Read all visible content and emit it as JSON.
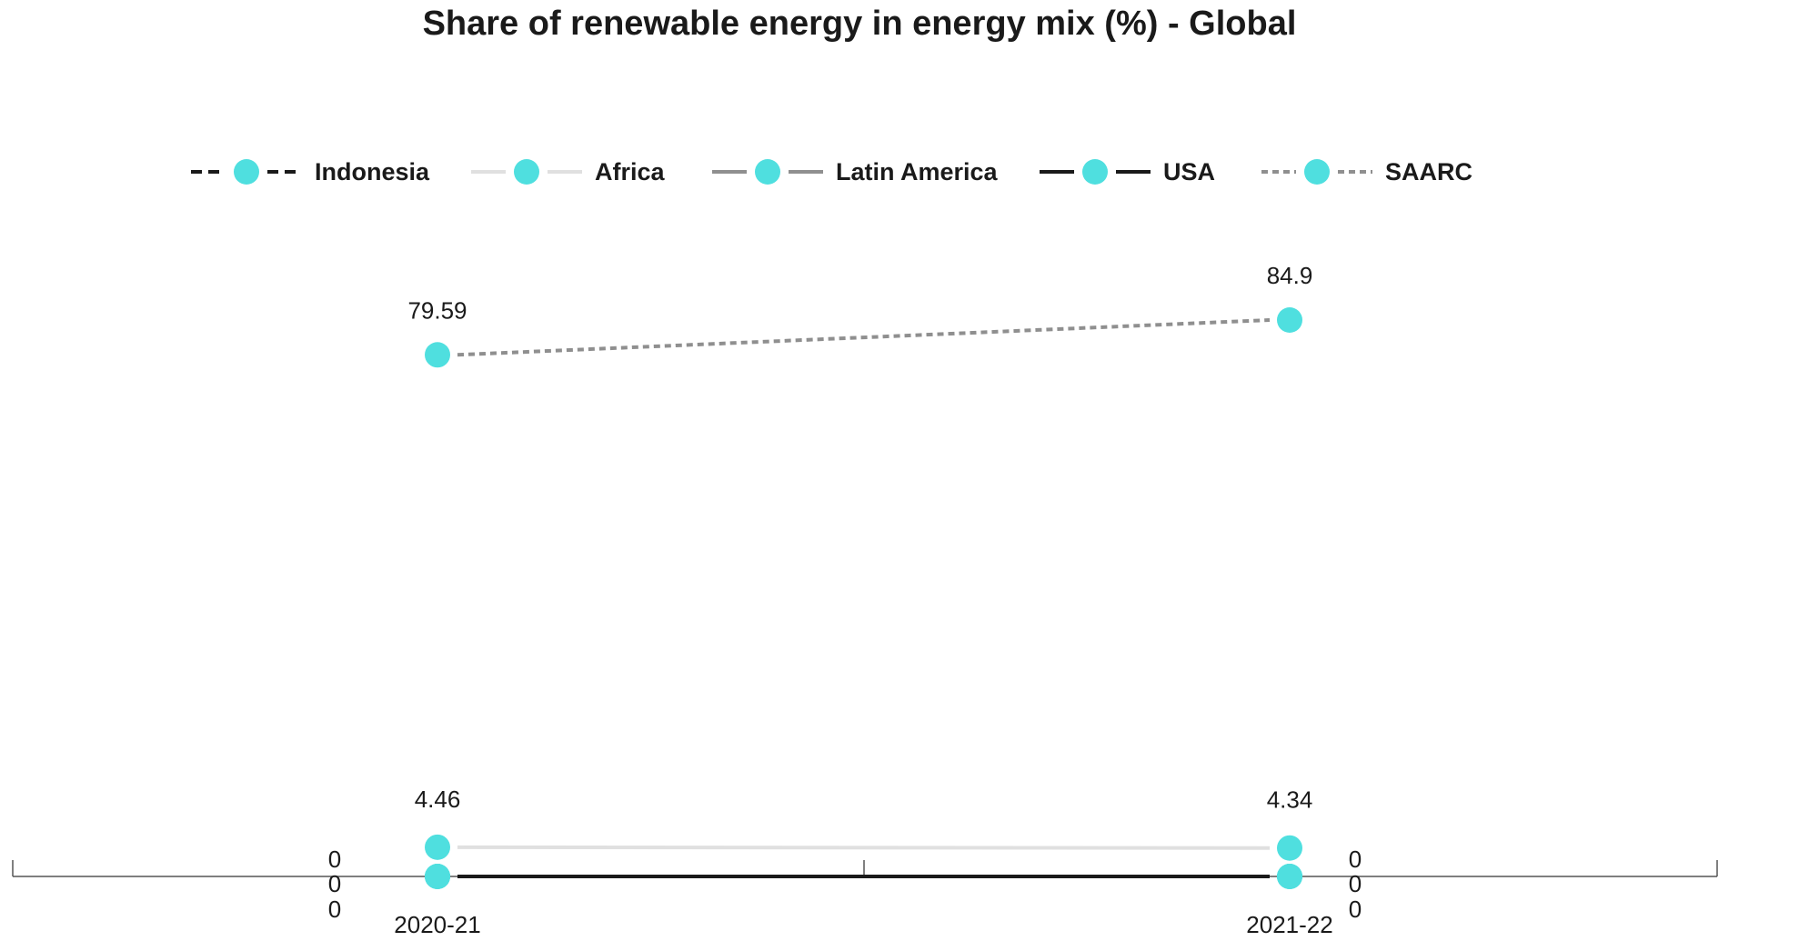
{
  "chart_data": {
    "type": "line",
    "title": "Share of renewable energy in energy mix (%) - Global",
    "xlabel": "",
    "ylabel": "",
    "categories": [
      "2020-21",
      "2021-22"
    ],
    "ylim": [
      0,
      100
    ],
    "grid": false,
    "legend_position": "top",
    "marker_color": "#4fdfdf",
    "series": [
      {
        "name": "Indonesia",
        "values": [
          0,
          0
        ],
        "color": "#1a1a1a",
        "dash": "dashed"
      },
      {
        "name": "Africa",
        "values": [
          4.46,
          4.34
        ],
        "color": "#e0e0e0",
        "dash": "solid"
      },
      {
        "name": "Latin America",
        "values": [
          0,
          0
        ],
        "color": "#8f8f8f",
        "dash": "solid"
      },
      {
        "name": "USA",
        "values": [
          0,
          0
        ],
        "color": "#1a1a1a",
        "dash": "solid"
      },
      {
        "name": "SAARC",
        "values": [
          79.59,
          84.9
        ],
        "color": "#8f8f8f",
        "dash": "dotted"
      }
    ],
    "value_labels": {
      "top": [
        "79.59",
        "84.9"
      ],
      "middle": [
        "4.46",
        "4.34"
      ],
      "zero_stack": [
        "0",
        "0",
        "0"
      ]
    }
  }
}
